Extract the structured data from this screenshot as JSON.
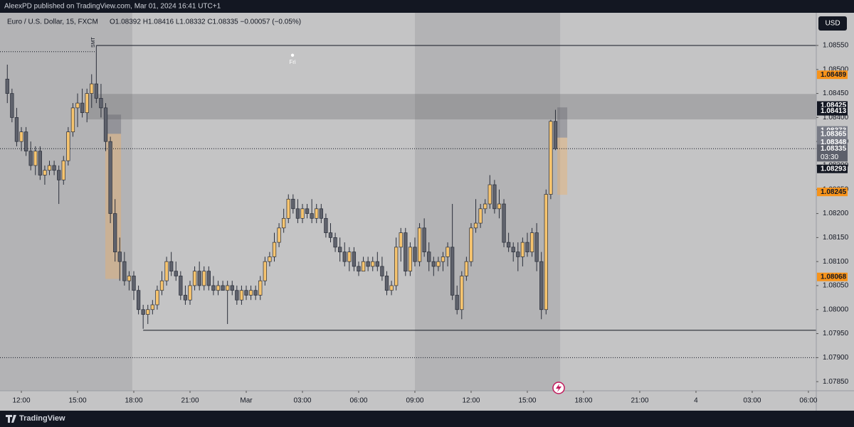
{
  "header": {
    "byline": "AleexPD published on TradingView.com, Mar 01, 2024 16:41 UTC+1",
    "brand": "TradingView"
  },
  "chart_data": {
    "type": "candlestick",
    "title": "Euro / U.S. Dollar, 15, FXCM",
    "ohlc_legend": "O1.08392 H1.08416 L1.08332 C1.08335 −0.00057 (−0.05%)",
    "currency": "USD",
    "up_color": "#f6c46f",
    "down_color": "#5f626c",
    "xlim": [
      10.86,
      54.42
    ],
    "ylim": [
      1.07831,
      1.08618
    ],
    "xticks": [
      {
        "value": 12,
        "label": "12:00"
      },
      {
        "value": 15,
        "label": "15:00"
      },
      {
        "value": 18,
        "label": "18:00"
      },
      {
        "value": 21,
        "label": "21:00"
      },
      {
        "value": 24,
        "label": "Mar"
      },
      {
        "value": 27,
        "label": "03:00"
      },
      {
        "value": 30,
        "label": "06:00"
      },
      {
        "value": 33,
        "label": "09:00"
      },
      {
        "value": 36,
        "label": "12:00"
      },
      {
        "value": 39,
        "label": "15:00"
      },
      {
        "value": 42,
        "label": "18:00"
      },
      {
        "value": 45,
        "label": "21:00"
      },
      {
        "value": 48,
        "label": "4"
      },
      {
        "value": 51,
        "label": "03:00"
      },
      {
        "value": 54,
        "label": "06:00"
      }
    ],
    "yticks": [
      {
        "value": 1.0785,
        "label": "1.07850"
      },
      {
        "value": 1.079,
        "label": "1.07900"
      },
      {
        "value": 1.0795,
        "label": "1.07950"
      },
      {
        "value": 1.08,
        "label": "1.08000"
      },
      {
        "value": 1.0805,
        "label": "1.08050"
      },
      {
        "value": 1.081,
        "label": "1.08100"
      },
      {
        "value": 1.0815,
        "label": "1.08150"
      },
      {
        "value": 1.082,
        "label": "1.08200"
      },
      {
        "value": 1.0825,
        "label": "1.08250"
      },
      {
        "value": 1.083,
        "label": "1.08300"
      },
      {
        "value": 1.0835,
        "label": "1.08350"
      },
      {
        "value": 1.084,
        "label": "1.08400"
      },
      {
        "value": 1.0845,
        "label": "1.08450"
      },
      {
        "value": 1.085,
        "label": "1.08500"
      },
      {
        "value": 1.0855,
        "label": "1.08550"
      }
    ],
    "price_tags": [
      {
        "value": 1.08489,
        "color": "#f7931a",
        "text_color": "#131722"
      },
      {
        "value": 1.08425,
        "color": "#131722",
        "text_color": "#ffffff"
      },
      {
        "value": 1.08413,
        "color": "#131722",
        "text_color": "#ffffff"
      },
      {
        "value": 1.08373,
        "color": "#787b86",
        "text_color": "#ffffff"
      },
      {
        "value": 1.08365,
        "color": "#787b86",
        "text_color": "#ffffff"
      },
      {
        "value": 1.08348,
        "color": "#787b86",
        "text_color": "#ffffff"
      },
      {
        "value": 1.08335,
        "color": "#5d606b",
        "text_color": "#ffffff",
        "countdown": "03:30"
      },
      {
        "value": 1.08293,
        "color": "#131722",
        "text_color": "#ffffff"
      },
      {
        "value": 1.08245,
        "color": "#f7931a",
        "text_color": "#131722"
      },
      {
        "value": 1.08068,
        "color": "#f7931a",
        "text_color": "#131722"
      }
    ],
    "sessions": [
      {
        "x": [
          10.86,
          17.92
        ]
      },
      {
        "x": [
          33.0,
          40.75
        ]
      }
    ],
    "zones": [
      {
        "x": [
          15.5,
          54.42
        ],
        "y": [
          1.08396,
          1.08449
        ],
        "color": "rgba(90,90,95,0.28)"
      },
      {
        "x": [
          16.48,
          17.32
        ],
        "y": [
          1.08366,
          1.08406
        ],
        "color": "rgba(90,90,100,0.35)"
      },
      {
        "x": [
          16.48,
          17.32
        ],
        "y": [
          1.08064,
          1.08366
        ],
        "color": "rgba(245,175,90,0.35)"
      },
      {
        "x": [
          40.6,
          41.13
        ],
        "y": [
          1.08358,
          1.08421
        ],
        "color": "rgba(90,90,100,0.35)"
      },
      {
        "x": [
          40.6,
          41.13
        ],
        "y": [
          1.08239,
          1.08358
        ],
        "color": "rgba(245,175,90,0.35)"
      }
    ],
    "levels": [
      {
        "value": 1.0855,
        "x": [
          16.0,
          54.42
        ],
        "style": "solid"
      },
      {
        "value": 1.08537,
        "x": [
          10.86,
          16.0
        ],
        "style": "dotted"
      },
      {
        "value": 1.07957,
        "x": [
          18.5,
          54.42
        ],
        "style": "solid"
      },
      {
        "value": 1.079,
        "x": [
          10.86,
          54.42
        ],
        "style": "dotted"
      },
      {
        "value": 1.08335,
        "x": [
          10.86,
          54.42
        ],
        "style": "dotted"
      }
    ],
    "annotations": {
      "smt": "SMT",
      "event": "Fri"
    },
    "candles": [
      [
        11.25,
        1.0848,
        1.0851,
        1.0843,
        1.0845
      ],
      [
        11.5,
        1.0845,
        1.0846,
        1.0839,
        1.084
      ],
      [
        11.75,
        1.084,
        1.0842,
        1.0834,
        1.0835
      ],
      [
        12,
        1.0835,
        1.0838,
        1.0833,
        1.0837
      ],
      [
        12.25,
        1.0837,
        1.0838,
        1.0832,
        1.0833
      ],
      [
        12.5,
        1.0833,
        1.0835,
        1.0829,
        1.083
      ],
      [
        12.75,
        1.083,
        1.0834,
        1.0828,
        1.0833
      ],
      [
        13,
        1.0833,
        1.0834,
        1.0827,
        1.0828
      ],
      [
        13.25,
        1.0828,
        1.083,
        1.0826,
        1.0829
      ],
      [
        13.5,
        1.0829,
        1.0831,
        1.0828,
        1.083
      ],
      [
        13.75,
        1.083,
        1.0831,
        1.0828,
        1.0829
      ],
      [
        14,
        1.0829,
        1.083,
        1.0822,
        1.0827
      ],
      [
        14.25,
        1.0827,
        1.0832,
        1.0826,
        1.0831
      ],
      [
        14.5,
        1.0831,
        1.0838,
        1.083,
        1.0837
      ],
      [
        14.75,
        1.0837,
        1.0843,
        1.0836,
        1.0842
      ],
      [
        15,
        1.0842,
        1.0845,
        1.0838,
        1.0843
      ],
      [
        15.25,
        1.0843,
        1.0846,
        1.084,
        1.0841
      ],
      [
        15.5,
        1.0841,
        1.0846,
        1.0839,
        1.0845
      ],
      [
        15.75,
        1.0845,
        1.0849,
        1.0842,
        1.0847
      ],
      [
        16,
        1.0847,
        1.0855,
        1.0843,
        1.0844
      ],
      [
        16.25,
        1.0844,
        1.0847,
        1.084,
        1.0842
      ],
      [
        16.5,
        1.0842,
        1.0843,
        1.0833,
        1.0835
      ],
      [
        16.75,
        1.0835,
        1.0836,
        1.0818,
        1.082
      ],
      [
        17,
        1.082,
        1.0823,
        1.081,
        1.0812
      ],
      [
        17.25,
        1.0812,
        1.0815,
        1.0806,
        1.081
      ],
      [
        17.5,
        1.081,
        1.0812,
        1.0805,
        1.0806
      ],
      [
        17.75,
        1.0806,
        1.0808,
        1.0804,
        1.0807
      ],
      [
        18,
        1.0807,
        1.0808,
        1.0802,
        1.0804
      ],
      [
        18.25,
        1.0804,
        1.0805,
        1.0799,
        1.08
      ],
      [
        18.5,
        1.08,
        1.0801,
        1.0796,
        1.0799
      ],
      [
        18.75,
        1.0799,
        1.0801,
        1.0797,
        1.08
      ],
      [
        19,
        1.08,
        1.0802,
        1.0799,
        1.0801
      ],
      [
        19.25,
        1.0801,
        1.0805,
        1.08,
        1.0804
      ],
      [
        19.5,
        1.0804,
        1.0808,
        1.0803,
        1.0806
      ],
      [
        19.75,
        1.0806,
        1.0811,
        1.0805,
        1.081
      ],
      [
        20,
        1.081,
        1.0812,
        1.0807,
        1.0808
      ],
      [
        20.25,
        1.0808,
        1.081,
        1.0806,
        1.0807
      ],
      [
        20.5,
        1.0807,
        1.0808,
        1.0802,
        1.0803
      ],
      [
        20.75,
        1.0803,
        1.0805,
        1.0801,
        1.0802
      ],
      [
        21,
        1.0802,
        1.0806,
        1.0801,
        1.0805
      ],
      [
        21.25,
        1.0805,
        1.0809,
        1.0804,
        1.0808
      ],
      [
        21.5,
        1.0808,
        1.081,
        1.0804,
        1.0805
      ],
      [
        21.75,
        1.0805,
        1.0809,
        1.0804,
        1.0808
      ],
      [
        22,
        1.0808,
        1.0809,
        1.0804,
        1.0805
      ],
      [
        22.25,
        1.0805,
        1.0807,
        1.0803,
        1.0804
      ],
      [
        22.5,
        1.0804,
        1.0806,
        1.0803,
        1.0805
      ],
      [
        22.75,
        1.0805,
        1.0806,
        1.0804,
        1.0804
      ],
      [
        23,
        1.0804,
        1.0806,
        1.0797,
        1.0805
      ],
      [
        23.25,
        1.0805,
        1.0806,
        1.0803,
        1.0804
      ],
      [
        23.5,
        1.0804,
        1.0805,
        1.0801,
        1.0802
      ],
      [
        23.75,
        1.0802,
        1.0805,
        1.0801,
        1.0804
      ],
      [
        24,
        1.0804,
        1.0805,
        1.0802,
        1.0803
      ],
      [
        24.25,
        1.0803,
        1.0805,
        1.0802,
        1.0804
      ],
      [
        24.5,
        1.0804,
        1.0805,
        1.0802,
        1.0803
      ],
      [
        24.75,
        1.0803,
        1.0807,
        1.0802,
        1.0806
      ],
      [
        25,
        1.0806,
        1.0811,
        1.0805,
        1.081
      ],
      [
        25.25,
        1.081,
        1.0812,
        1.0809,
        1.0811
      ],
      [
        25.5,
        1.0811,
        1.0816,
        1.081,
        1.0814
      ],
      [
        25.75,
        1.0814,
        1.0818,
        1.0813,
        1.0817
      ],
      [
        26,
        1.0817,
        1.0821,
        1.0816,
        1.0819
      ],
      [
        26.25,
        1.0819,
        1.0824,
        1.0818,
        1.0823
      ],
      [
        26.5,
        1.0823,
        1.0824,
        1.082,
        1.0821
      ],
      [
        26.75,
        1.0821,
        1.0823,
        1.0818,
        1.0819
      ],
      [
        27,
        1.0819,
        1.0822,
        1.0818,
        1.0821
      ],
      [
        27.25,
        1.0821,
        1.0822,
        1.0819,
        1.082
      ],
      [
        27.5,
        1.082,
        1.0823,
        1.0818,
        1.0819
      ],
      [
        27.75,
        1.0819,
        1.0822,
        1.0818,
        1.0821
      ],
      [
        28,
        1.0821,
        1.0822,
        1.0818,
        1.0819
      ],
      [
        28.25,
        1.0819,
        1.082,
        1.0815,
        1.0816
      ],
      [
        28.5,
        1.0816,
        1.0818,
        1.0814,
        1.0815
      ],
      [
        28.75,
        1.0815,
        1.0816,
        1.0812,
        1.0813
      ],
      [
        29,
        1.0813,
        1.0815,
        1.081,
        1.0812
      ],
      [
        29.25,
        1.0812,
        1.0814,
        1.0809,
        1.081
      ],
      [
        29.5,
        1.081,
        1.0813,
        1.0808,
        1.0812
      ],
      [
        29.75,
        1.0812,
        1.0813,
        1.0808,
        1.0809
      ],
      [
        30,
        1.0809,
        1.081,
        1.0807,
        1.0808
      ],
      [
        30.25,
        1.0808,
        1.0811,
        1.0808,
        1.081
      ],
      [
        30.5,
        1.081,
        1.0811,
        1.0808,
        1.0809
      ],
      [
        30.75,
        1.0809,
        1.0811,
        1.0808,
        1.081
      ],
      [
        31,
        1.081,
        1.0812,
        1.0808,
        1.0809
      ],
      [
        31.25,
        1.0809,
        1.0811,
        1.0806,
        1.0807
      ],
      [
        31.5,
        1.0807,
        1.0808,
        1.0803,
        1.0804
      ],
      [
        31.75,
        1.0804,
        1.0806,
        1.0803,
        1.0805
      ],
      [
        32,
        1.0805,
        1.0815,
        1.0804,
        1.0813
      ],
      [
        32.25,
        1.0813,
        1.0817,
        1.081,
        1.0816
      ],
      [
        32.5,
        1.0816,
        1.0817,
        1.0807,
        1.0808
      ],
      [
        32.75,
        1.0808,
        1.0814,
        1.0807,
        1.0813
      ],
      [
        33,
        1.0813,
        1.0815,
        1.0809,
        1.081
      ],
      [
        33.25,
        1.081,
        1.0818,
        1.0809,
        1.0817
      ],
      [
        33.5,
        1.0817,
        1.0819,
        1.0811,
        1.0812
      ],
      [
        33.75,
        1.0812,
        1.0814,
        1.0808,
        1.081
      ],
      [
        34,
        1.081,
        1.0811,
        1.0807,
        1.0809
      ],
      [
        34.25,
        1.0809,
        1.0811,
        1.0808,
        1.081
      ],
      [
        34.5,
        1.081,
        1.0812,
        1.0808,
        1.0811
      ],
      [
        34.75,
        1.0811,
        1.0814,
        1.0809,
        1.0813
      ],
      [
        35,
        1.0813,
        1.0822,
        1.0802,
        1.0803
      ],
      [
        35.25,
        1.0803,
        1.0805,
        1.0799,
        1.08
      ],
      [
        35.5,
        1.08,
        1.0808,
        1.0798,
        1.0807
      ],
      [
        35.75,
        1.0807,
        1.0811,
        1.0806,
        1.081
      ],
      [
        36,
        1.081,
        1.0818,
        1.0809,
        1.0817
      ],
      [
        36.25,
        1.0817,
        1.0823,
        1.0816,
        1.0818
      ],
      [
        36.5,
        1.0818,
        1.0822,
        1.0817,
        1.0821
      ],
      [
        36.75,
        1.0821,
        1.0823,
        1.082,
        1.0822
      ],
      [
        37,
        1.0822,
        1.0828,
        1.0821,
        1.0826
      ],
      [
        37.25,
        1.0826,
        1.0827,
        1.082,
        1.0821
      ],
      [
        37.5,
        1.0821,
        1.0825,
        1.0819,
        1.0822
      ],
      [
        37.75,
        1.0822,
        1.0823,
        1.0813,
        1.0814
      ],
      [
        38,
        1.0814,
        1.0816,
        1.0812,
        1.0813
      ],
      [
        38.25,
        1.0813,
        1.0814,
        1.081,
        1.0812
      ],
      [
        38.5,
        1.0812,
        1.0814,
        1.0808,
        1.0811
      ],
      [
        38.75,
        1.0811,
        1.0815,
        1.0809,
        1.0814
      ],
      [
        39,
        1.0814,
        1.0816,
        1.0811,
        1.0812
      ],
      [
        39.25,
        1.0812,
        1.0817,
        1.0811,
        1.0816
      ],
      [
        39.5,
        1.0816,
        1.0818,
        1.0808,
        1.081
      ],
      [
        39.75,
        1.081,
        1.0812,
        1.0798,
        1.08
      ],
      [
        40,
        1.08,
        1.0825,
        1.0799,
        1.0824
      ],
      [
        40.25,
        1.0824,
        1.08395,
        1.0823,
        1.08392
      ],
      [
        40.5,
        1.08392,
        1.08416,
        1.08332,
        1.08335
      ]
    ]
  }
}
